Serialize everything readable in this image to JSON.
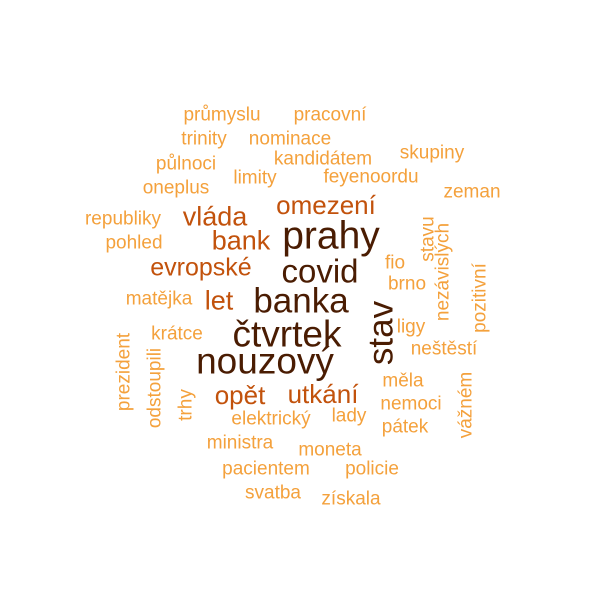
{
  "words": {
    "prumyslu": "průmyslu",
    "pracovni": "pracovní",
    "trinity": "trinity",
    "nominace": "nominace",
    "kandidatem": "kandidátem",
    "skupiny": "skupiny",
    "pulnoci": "půlnoci",
    "limity": "limity",
    "feyenoordu": "feyenoordu",
    "oneplus": "oneplus",
    "zeman": "zeman",
    "omezeni": "omezení",
    "republiky": "republiky",
    "vlada": "vláda",
    "stavu": "stavu",
    "pohled": "pohled",
    "bank": "bank",
    "prahy": "prahy",
    "nezavislych": "nezávislých",
    "pozitivni": "pozitivní",
    "evropske": "evropské",
    "covid": "covid",
    "fio": "fio",
    "brno": "brno",
    "matejka": "matějka",
    "let": "let",
    "banka": "banka",
    "stav": "stav",
    "ligy": "ligy",
    "kratce": "krátce",
    "ctvrtek": "čtvrtek",
    "prezident": "prezident",
    "odstoupili": "odstoupili",
    "nestesti": "neštěstí",
    "vaznem": "vážném",
    "nouzovy": "nouzový",
    "mela": "měla",
    "trhy": "trhy",
    "opet": "opět",
    "utkani": "utkání",
    "nemoci": "nemoci",
    "elektricky": "elektrický",
    "lady": "lady",
    "patek": "pátek",
    "ministra": "ministra",
    "moneta": "moneta",
    "pacientem": "pacientem",
    "policie": "policie",
    "svatba": "svatba",
    "ziskala": "získala"
  },
  "colors": {
    "high_frequency": "#4a1c02",
    "mid_frequency": "#c2520c",
    "low_frequency": "#f4a13c",
    "background": "#ffffff"
  }
}
